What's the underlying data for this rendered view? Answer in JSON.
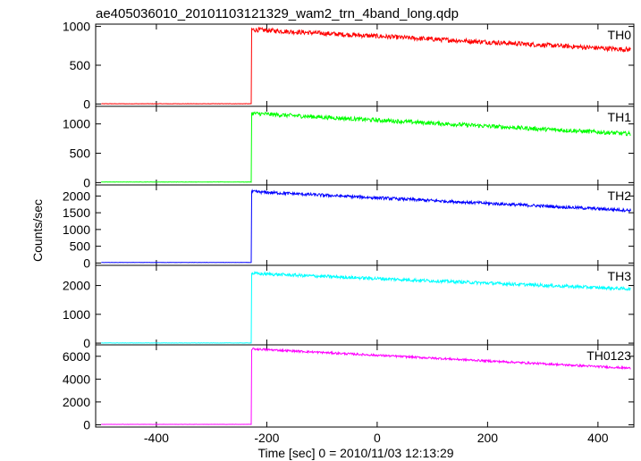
{
  "chart_data": {
    "type": "line",
    "title": "ae405036010_20101103121329_wam2_trn_4band_long.qdp",
    "xlabel": "Time [sec] 0 = 2010/11/03 12:13:29",
    "ylabel": "Counts/sec",
    "xlim": [
      -510,
      465
    ],
    "x_ticks": [
      -400,
      -200,
      0,
      200,
      400
    ],
    "trigger_time": -228,
    "x_start": -500,
    "x_end": 460,
    "panels": [
      {
        "name": "TH0",
        "color": "#ff0000",
        "ylim": [
          -30,
          1030
        ],
        "y_ticks": [
          0,
          500,
          1000
        ],
        "pre_level": 3,
        "peak_level": 960,
        "end_level": 700,
        "noise": 30
      },
      {
        "name": "TH1",
        "color": "#00ff00",
        "ylim": [
          -40,
          1300
        ],
        "y_ticks": [
          0,
          500,
          1000
        ],
        "pre_level": 10,
        "peak_level": 1180,
        "end_level": 830,
        "noise": 35
      },
      {
        "name": "TH2",
        "color": "#0000ff",
        "ylim": [
          -70,
          2330
        ],
        "y_ticks": [
          0,
          500,
          1000,
          1500,
          2000
        ],
        "pre_level": 15,
        "peak_level": 2130,
        "end_level": 1570,
        "noise": 45
      },
      {
        "name": "TH3",
        "color": "#00ffff",
        "ylim": [
          -60,
          2700
        ],
        "y_ticks": [
          0,
          1000,
          2000
        ],
        "pre_level": 5,
        "peak_level": 2420,
        "end_level": 1880,
        "noise": 55
      },
      {
        "name": "TH0123",
        "color": "#ff00ff",
        "ylim": [
          -200,
          7000
        ],
        "y_ticks": [
          0,
          2000,
          4000,
          6000
        ],
        "pre_level": 35,
        "peak_level": 6650,
        "end_level": 4950,
        "noise": 90
      }
    ]
  }
}
